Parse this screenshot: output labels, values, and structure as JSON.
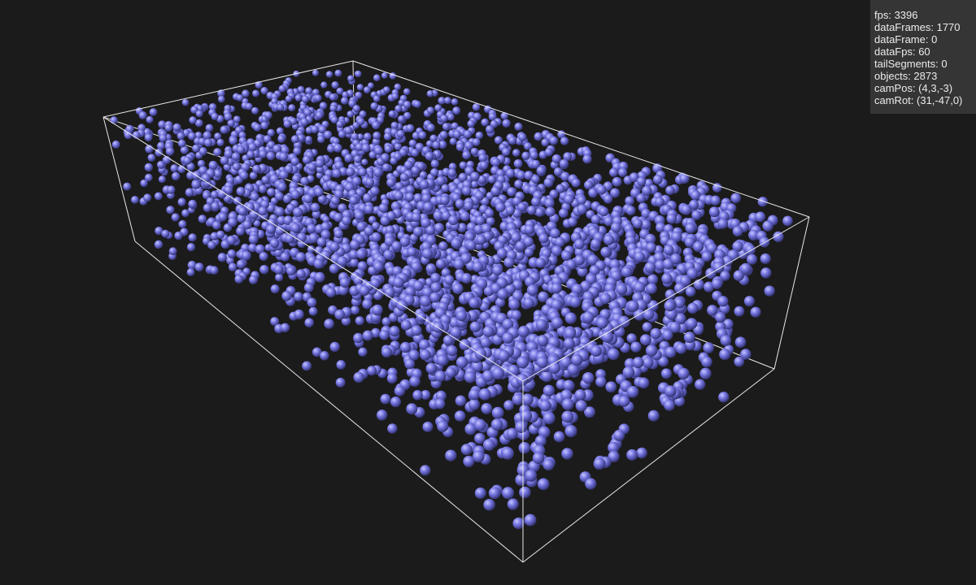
{
  "app": {
    "title": "",
    "background_color": "#1b1b1b",
    "sphere_color": "#6a6ad6",
    "box_color": "#e8e8e8"
  },
  "stats": {
    "fps": "fps: 3396",
    "dataFrames": "dataFrames: 1770",
    "dataFrame": "dataFrame: 0",
    "dataFps": "dataFps: 60",
    "tailSegments": "tailSegments: 0",
    "objects": "objects: 2873",
    "camPos": "camPos: (4,3,-3)",
    "camRot": "camRot: (31,-47,0)"
  },
  "scene": {
    "object_type": "sphere",
    "object_count": 2873,
    "bounding_box_visible": true
  }
}
